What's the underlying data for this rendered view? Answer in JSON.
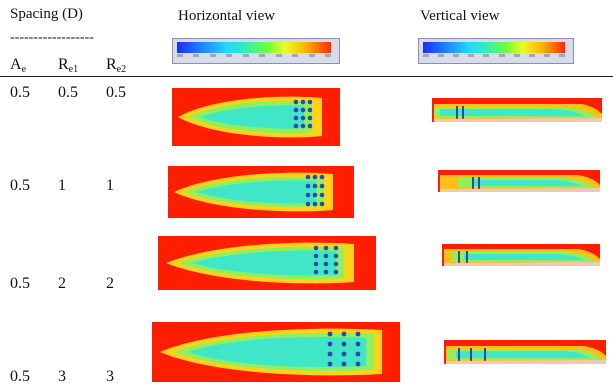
{
  "header": {
    "spacing_label": "Spacing (D)",
    "dash_line": "------------------",
    "horizontal_view": "Horizontal view",
    "vertical_view": "Vertical view"
  },
  "columns": {
    "ae": {
      "main": "A",
      "sub": "e"
    },
    "re1": {
      "main": "R",
      "sub": "e1"
    },
    "re2": {
      "main": "R",
      "sub": "e2"
    }
  },
  "rows": [
    {
      "ae": "0.5",
      "re1": "0.5",
      "re2": "0.5"
    },
    {
      "ae": "0.5",
      "re1": "1",
      "re2": "1"
    },
    {
      "ae": "0.5",
      "re1": "2",
      "re2": "2"
    },
    {
      "ae": "0.5",
      "re1": "3",
      "re2": "3"
    }
  ],
  "colors": {
    "field_hot": "#ff1f00",
    "plume_mid": "#ffd21a",
    "plume_core": "#3fe6c8",
    "sensor_dot": "#3344aa"
  }
}
